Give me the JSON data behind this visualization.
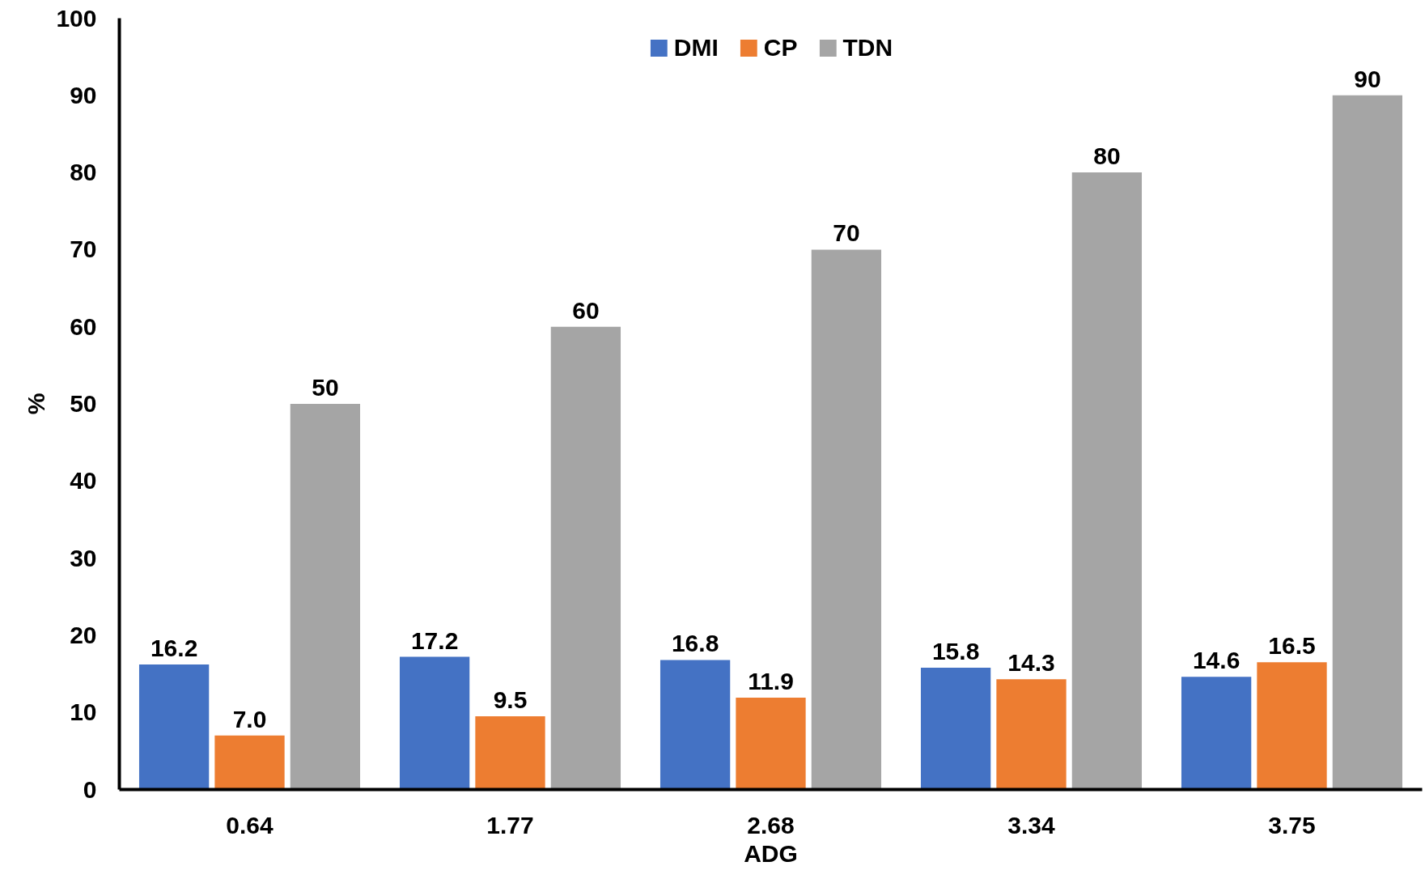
{
  "chart_data": {
    "type": "bar",
    "xlabel": "ADG",
    "ylabel": "%",
    "categories": [
      "0.64",
      "1.77",
      "2.68",
      "3.34",
      "3.75"
    ],
    "series": [
      {
        "name": "DMI",
        "color": "#4472c4",
        "values": [
          16.2,
          17.2,
          16.8,
          15.8,
          14.6
        ],
        "value_labels": [
          "16.2",
          "17.2",
          "16.8",
          "15.8",
          "14.6"
        ]
      },
      {
        "name": "CP",
        "color": "#ed7d31",
        "values": [
          7.0,
          9.5,
          11.9,
          14.3,
          16.5
        ],
        "value_labels": [
          "7.0",
          "9.5",
          "11.9",
          "14.3",
          "16.5"
        ]
      },
      {
        "name": "TDN",
        "color": "#a5a5a5",
        "values": [
          50,
          60,
          70,
          80,
          90
        ],
        "value_labels": [
          "50",
          "60",
          "70",
          "80",
          "90"
        ]
      }
    ],
    "ylim": [
      0,
      100
    ],
    "yticks": [
      0,
      10,
      20,
      30,
      40,
      50,
      60,
      70,
      80,
      90,
      100
    ],
    "grid": false,
    "legend": "top"
  }
}
